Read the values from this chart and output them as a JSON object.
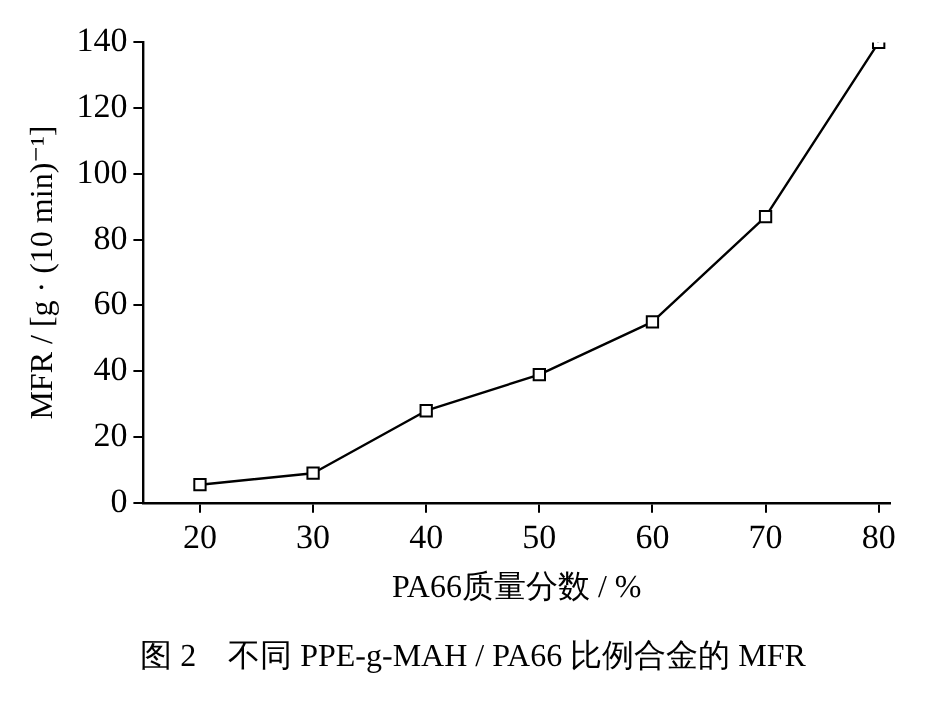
{
  "chart_data": {
    "type": "line",
    "xlabel": "PA66质量分数 / %",
    "ylabel": "MFR / [g · (10 min)⁻¹]",
    "x": [
      20,
      30,
      40,
      50,
      60,
      70,
      80
    ],
    "series": [
      {
        "color": "#000000",
        "values": [
          5.5,
          9,
          28,
          39,
          55,
          87,
          140
        ]
      }
    ],
    "xlim": [
      15,
      81
    ],
    "xticks": [
      20,
      30,
      40,
      50,
      60,
      70,
      80
    ],
    "ylim": [
      0,
      140
    ],
    "yticks": [
      0,
      20,
      40,
      60,
      80,
      100,
      120,
      140
    ],
    "marker": "square",
    "line_style": "solid",
    "grid": false,
    "legend": false,
    "annotations": [
      "图 2　不同 PPE-g-MAH / PA66 比例合金的 MFR"
    ]
  }
}
